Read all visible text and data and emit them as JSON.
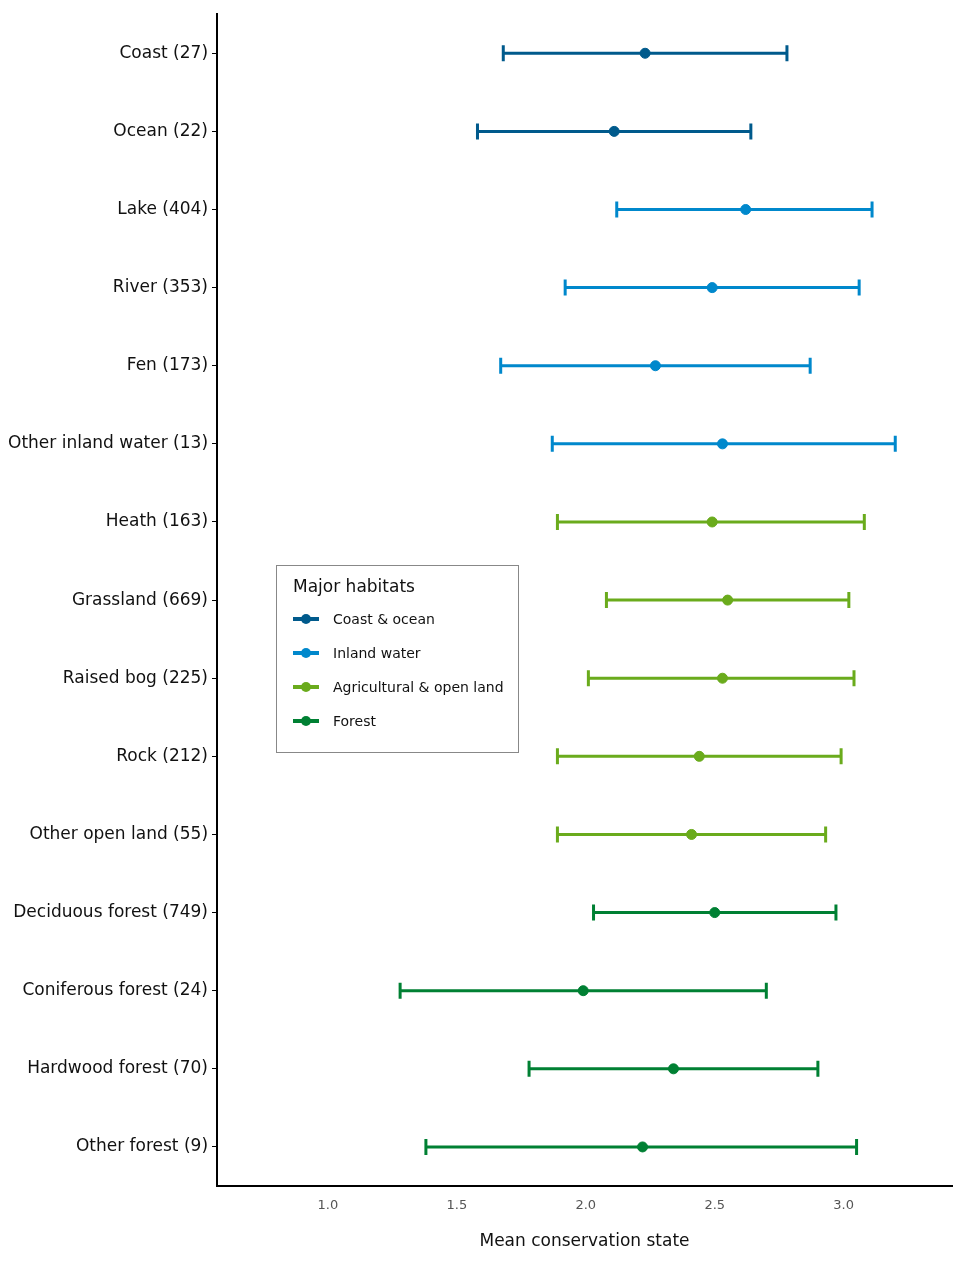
{
  "chart_data": {
    "type": "scatter",
    "orientation": "horizontal",
    "xlabel": "Mean conservation state",
    "legend_title": "Major habitats",
    "legend": "left",
    "grid": false,
    "marker": "circle",
    "categories": [
      "Coast (27)",
      "Ocean (22)",
      "Lake (404)",
      "River (353)",
      "Fen (173)",
      "Other inland water (13)",
      "Heath (163)",
      "Grassland (669)",
      "Raised bog (225)",
      "Rock (212)",
      "Other open land (55)",
      "Deciduous forest (749)",
      "Coniferous forest (24)",
      "Hardwood forest (70)",
      "Other forest (9)"
    ],
    "xlim": [
      0.57,
      3.42
    ],
    "xticks": [
      {
        "value": 1,
        "label": "1.0"
      },
      {
        "value": 1.5,
        "label": "1.5"
      },
      {
        "value": 2,
        "label": "2.0"
      },
      {
        "value": 2.5,
        "label": "2.5"
      },
      {
        "value": 3,
        "label": "3.0"
      }
    ],
    "series": [
      {
        "name": "Coast & ocean",
        "color": "#005a8c",
        "values": [
          2.23,
          2.11,
          null,
          null,
          null,
          null,
          null,
          null,
          null,
          null,
          null,
          null,
          null,
          null,
          null
        ],
        "errors": [
          [
            1.68,
            2.78
          ],
          [
            1.58,
            2.64
          ],
          null,
          null,
          null,
          null,
          null,
          null,
          null,
          null,
          null,
          null,
          null,
          null,
          null
        ]
      },
      {
        "name": "Inland water",
        "color": "#0088cc",
        "values": [
          null,
          null,
          2.62,
          2.49,
          2.27,
          2.53,
          null,
          null,
          null,
          null,
          null,
          null,
          null,
          null,
          null
        ],
        "errors": [
          null,
          null,
          [
            2.12,
            3.11
          ],
          [
            1.92,
            3.06
          ],
          [
            1.67,
            2.87
          ],
          [
            1.87,
            3.2
          ],
          null,
          null,
          null,
          null,
          null,
          null,
          null,
          null,
          null
        ]
      },
      {
        "name": "Agricultural & open land",
        "color": "#6aab1c",
        "values": [
          null,
          null,
          null,
          null,
          null,
          null,
          2.49,
          2.55,
          2.53,
          2.44,
          2.41,
          null,
          null,
          null,
          null
        ],
        "errors": [
          null,
          null,
          null,
          null,
          null,
          null,
          [
            1.89,
            3.08
          ],
          [
            2.08,
            3.02
          ],
          [
            2.01,
            3.04
          ],
          [
            1.89,
            2.99
          ],
          [
            1.89,
            2.93
          ],
          null,
          null,
          null,
          null
        ]
      },
      {
        "name": "Forest",
        "color": "#008033",
        "values": [
          null,
          null,
          null,
          null,
          null,
          null,
          null,
          null,
          null,
          null,
          null,
          2.5,
          1.99,
          2.34,
          2.22
        ],
        "errors": [
          null,
          null,
          null,
          null,
          null,
          null,
          null,
          null,
          null,
          null,
          null,
          [
            2.03,
            2.97
          ],
          [
            1.28,
            2.7
          ],
          [
            1.78,
            2.9
          ],
          [
            1.38,
            3.05
          ]
        ]
      }
    ]
  }
}
